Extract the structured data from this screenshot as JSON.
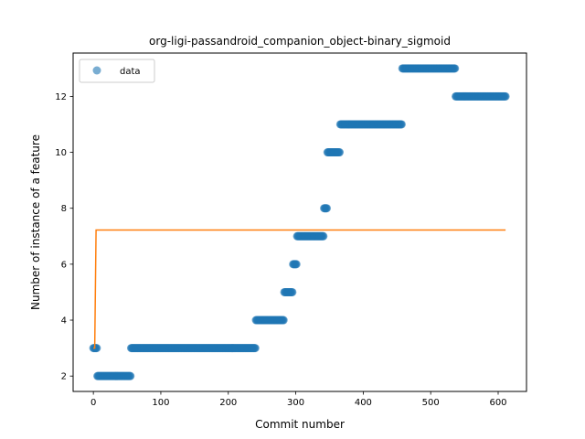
{
  "chart_data": {
    "type": "scatter",
    "title": "org-ligi-passandroid_companion_object-binary_sigmoid",
    "xlabel": "Commit number",
    "ylabel": "Number of instance of a feature",
    "xlim": [
      -30,
      642
    ],
    "ylim": [
      1.45,
      13.55
    ],
    "x_ticks": [
      0,
      100,
      200,
      300,
      400,
      500,
      600
    ],
    "y_ticks": [
      2,
      4,
      6,
      8,
      10,
      12
    ],
    "grid": false,
    "legend": {
      "position": "top-left",
      "entries": [
        "data"
      ]
    },
    "colors": {
      "data": "#1f77b4",
      "fit": "#ff7f0e"
    },
    "series": [
      {
        "name": "data",
        "kind": "scatter",
        "runs": [
          {
            "x_start": 0,
            "x_end": 5,
            "y": 3
          },
          {
            "x_start": 6,
            "x_end": 55,
            "y": 2
          },
          {
            "x_start": 56,
            "x_end": 240,
            "y": 3
          },
          {
            "x_start": 241,
            "x_end": 282,
            "y": 4
          },
          {
            "x_start": 283,
            "x_end": 295,
            "y": 5
          },
          {
            "x_start": 296,
            "x_end": 301,
            "y": 6
          },
          {
            "x_start": 302,
            "x_end": 341,
            "y": 7
          },
          {
            "x_start": 342,
            "x_end": 346,
            "y": 8
          },
          {
            "x_start": 347,
            "x_end": 365,
            "y": 10
          },
          {
            "x_start": 366,
            "x_end": 457,
            "y": 11
          },
          {
            "x_start": 458,
            "x_end": 536,
            "y": 13
          },
          {
            "x_start": 537,
            "x_end": 611,
            "y": 12
          }
        ]
      },
      {
        "kind": "line",
        "points": [
          [
            0,
            3.0
          ],
          [
            2,
            3.0
          ],
          [
            4,
            7.22
          ],
          [
            611,
            7.22
          ]
        ]
      }
    ]
  }
}
